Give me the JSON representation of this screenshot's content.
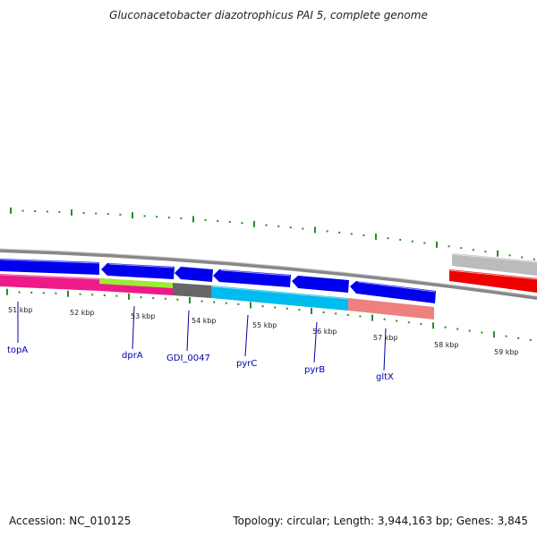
{
  "title": "Gluconacetobacter diazotrophicus PAI 5, complete genome",
  "footer": {
    "accession": "Accession: NC_010125",
    "summary": "Topology: circular; Length: 3,944,163 bp; Genes: 3,845"
  },
  "colors": {
    "backbone": "#888888",
    "tick": "#2a8a2a",
    "cds_blue": "#0000ee",
    "pink": "#ee1a8a",
    "lime": "#99ee33",
    "dark_gray": "#666666",
    "cyan": "#00bbee",
    "salmon": "#ee8080",
    "light_gray": "#bbbbbb",
    "red": "#ee0000",
    "label": "#0000aa"
  },
  "kbp_labels": [
    "51 kbp",
    "52 kbp",
    "53 kbp",
    "54 kbp",
    "55 kbp",
    "56 kbp",
    "57 kbp",
    "58 kbp",
    "59 kbp"
  ],
  "gene_labels": [
    "topA",
    "dprA",
    "GDI_0047",
    "pyrC",
    "pyrB",
    "gltX"
  ]
}
